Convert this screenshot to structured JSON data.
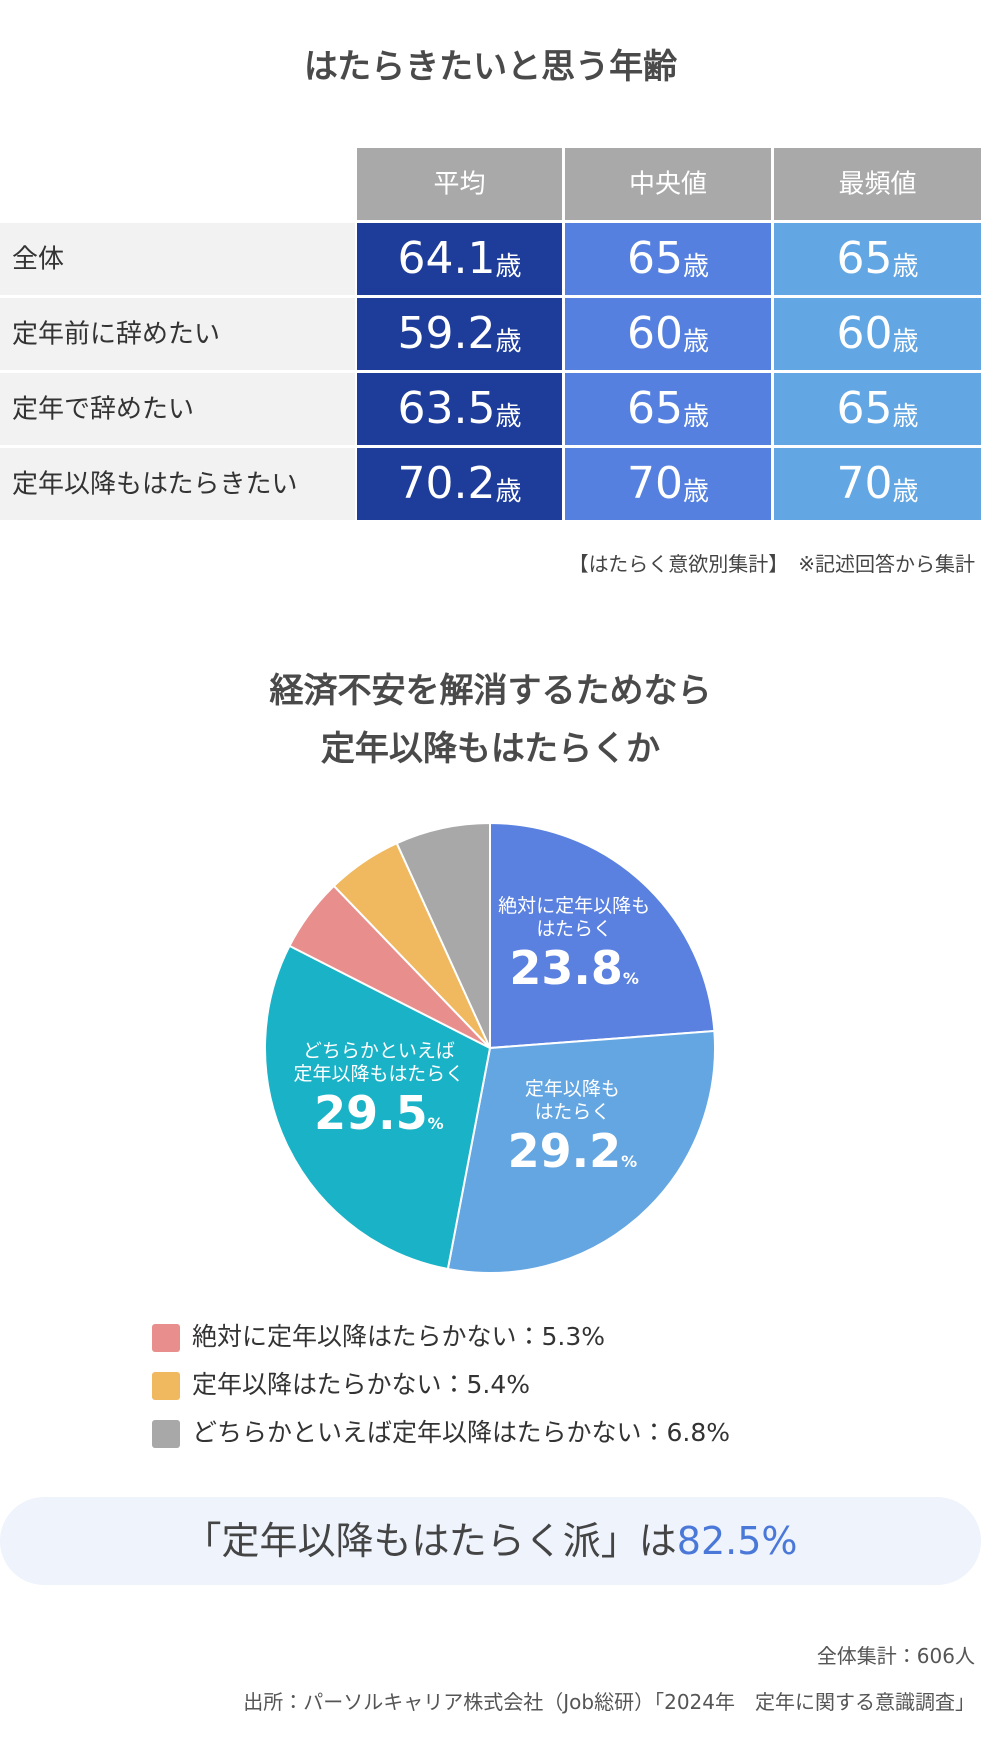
{
  "header": {
    "title": "はたらきたいと思う年齢"
  },
  "table": {
    "columns": [
      "平均",
      "中央値",
      "最頻値"
    ],
    "unit": "歳",
    "rows": [
      {
        "label": "全体",
        "values": [
          "64.1",
          "65",
          "65"
        ]
      },
      {
        "label": "定年前に辞めたい",
        "values": [
          "59.2",
          "60",
          "60"
        ]
      },
      {
        "label": "定年で辞めたい",
        "values": [
          "63.5",
          "65",
          "65"
        ]
      },
      {
        "label": "定年以降もはたらきたい",
        "values": [
          "70.2",
          "70",
          "70"
        ]
      }
    ],
    "note": "【はたらく意欲別集計】　※記述回答から集計"
  },
  "chart_data": {
    "type": "pie",
    "title": "経済不安を解消するためなら\n定年以降もはたらくか",
    "categories": [
      "絶対に定年以降も\nはたらく",
      "定年以降も\nはたらく",
      "どちらかといえば\n定年以降もはたらく",
      "絶対に定年以降はたらかない",
      "定年以降はたらかない",
      "どちらかといえば定年以降はたらかない"
    ],
    "values": [
      23.8,
      29.2,
      29.5,
      5.3,
      5.4,
      6.8
    ],
    "colors": [
      "#5a80e0",
      "#64a6e2",
      "#19b2c6",
      "#e88f8e",
      "#f0b85f",
      "#a8a8a8"
    ],
    "unit": "%",
    "legend_separator": "："
  },
  "summary": {
    "text": "「定年以降もはたらく派」は",
    "highlight": "82.5%"
  },
  "footer": {
    "total": "全体集計：606人",
    "source": "出所：パーソルキャリア株式会社（Job総研）「2024年　定年に関する意識調査」"
  }
}
